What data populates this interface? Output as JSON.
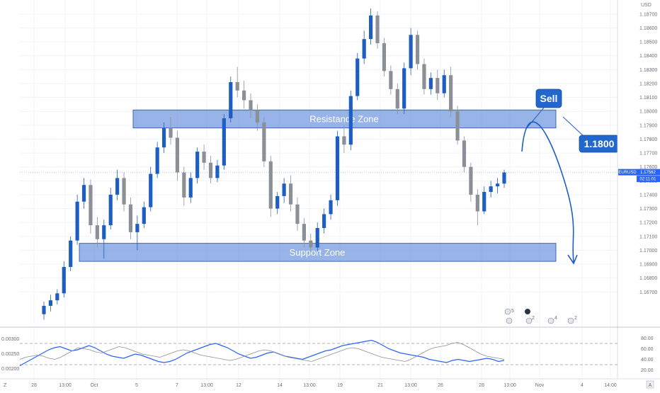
{
  "chart_data": [
    {
      "type": "candlestick",
      "title": "",
      "currency": "USD",
      "symbol_tag": "EURUSD",
      "current_price": "1.17562",
      "countdown": "02:11:01",
      "y_ticks": [
        "1.18700",
        "1.18600",
        "1.18500",
        "1.18400",
        "1.18300",
        "1.18200",
        "1.18100",
        "1.18000",
        "1.17900",
        "1.17800",
        "1.17700",
        "1.17600",
        "1.17500",
        "1.17400",
        "1.17300",
        "1.17200",
        "1.17100",
        "1.17000",
        "1.16900",
        "1.16800",
        "1.16700"
      ],
      "ylim": [
        1.1662,
        1.1874
      ],
      "x_ticks": [
        "28",
        "13:00",
        "Oct",
        "5",
        "7",
        "13:00",
        "12",
        "14",
        "13:00",
        "19",
        "21",
        "13:00",
        "26",
        "28",
        "13:00",
        "Nov",
        "4",
        "14:00"
      ],
      "resistance_zone": {
        "label": "Resistance Zone",
        "from": 1.1788,
        "to": 1.1801
      },
      "support_zone": {
        "label": "Support Zone",
        "from": 1.1692,
        "to": 1.1705
      },
      "callouts": {
        "sell": "Sell",
        "target": "1.1800"
      },
      "candles": [
        [
          1.1654,
          1.1663,
          1.165,
          1.166
        ],
        [
          1.166,
          1.1668,
          1.1656,
          1.1664
        ],
        [
          1.1664,
          1.1672,
          1.1661,
          1.1669
        ],
        [
          1.1669,
          1.1692,
          1.1666,
          1.1688
        ],
        [
          1.1688,
          1.171,
          1.1685,
          1.1707
        ],
        [
          1.1707,
          1.174,
          1.1704,
          1.1735
        ],
        [
          1.1735,
          1.1752,
          1.173,
          1.1747
        ],
        [
          1.1747,
          1.1751,
          1.1712,
          1.1718
        ],
        [
          1.1718,
          1.1724,
          1.1702,
          1.1708
        ],
        [
          1.1708,
          1.1722,
          1.1694,
          1.1718
        ],
        [
          1.1718,
          1.1745,
          1.1715,
          1.174
        ],
        [
          1.174,
          1.1758,
          1.1736,
          1.1752
        ],
        [
          1.1752,
          1.1756,
          1.1728,
          1.1733
        ],
        [
          1.1733,
          1.1738,
          1.1708,
          1.1713
        ],
        [
          1.1713,
          1.1725,
          1.17,
          1.1719
        ],
        [
          1.1719,
          1.1735,
          1.1716,
          1.1731
        ],
        [
          1.1731,
          1.176,
          1.1728,
          1.1755
        ],
        [
          1.1755,
          1.1778,
          1.1752,
          1.1774
        ],
        [
          1.1774,
          1.1792,
          1.177,
          1.1788
        ],
        [
          1.1788,
          1.1796,
          1.1776,
          1.1781
        ],
        [
          1.1781,
          1.1786,
          1.175,
          1.1756
        ],
        [
          1.1756,
          1.176,
          1.1732,
          1.1738
        ],
        [
          1.1738,
          1.1756,
          1.1734,
          1.1752
        ],
        [
          1.1752,
          1.1774,
          1.1748,
          1.1771
        ],
        [
          1.1771,
          1.1776,
          1.1758,
          1.1763
        ],
        [
          1.1763,
          1.1768,
          1.1748,
          1.1752
        ],
        [
          1.1752,
          1.1765,
          1.1749,
          1.1761
        ],
        [
          1.1761,
          1.1798,
          1.1758,
          1.1795
        ],
        [
          1.1795,
          1.1825,
          1.1792,
          1.1821
        ],
        [
          1.1821,
          1.1832,
          1.181,
          1.1815
        ],
        [
          1.1815,
          1.1822,
          1.1802,
          1.1808
        ],
        [
          1.1808,
          1.1813,
          1.1795,
          1.1801
        ],
        [
          1.1801,
          1.1805,
          1.1786,
          1.1792
        ],
        [
          1.1792,
          1.1796,
          1.176,
          1.1764
        ],
        [
          1.1764,
          1.1768,
          1.1724,
          1.173
        ],
        [
          1.173,
          1.1742,
          1.1726,
          1.1739
        ],
        [
          1.1739,
          1.1752,
          1.1734,
          1.1748
        ],
        [
          1.1748,
          1.1754,
          1.1728,
          1.1733
        ],
        [
          1.1733,
          1.1738,
          1.1714,
          1.1719
        ],
        [
          1.1719,
          1.1723,
          1.1702,
          1.1707
        ],
        [
          1.1707,
          1.1712,
          1.1698,
          1.1702
        ],
        [
          1.1702,
          1.172,
          1.1699,
          1.1716
        ],
        [
          1.1716,
          1.173,
          1.1712,
          1.1726
        ],
        [
          1.1726,
          1.174,
          1.1722,
          1.1736
        ],
        [
          1.1736,
          1.1786,
          1.1732,
          1.1782
        ],
        [
          1.1782,
          1.179,
          1.177,
          1.1776
        ],
        [
          1.1776,
          1.1815,
          1.1772,
          1.1811
        ],
        [
          1.1811,
          1.1842,
          1.1808,
          1.1838
        ],
        [
          1.1838,
          1.1858,
          1.1834,
          1.1852
        ],
        [
          1.1852,
          1.1874,
          1.1848,
          1.1869
        ],
        [
          1.1869,
          1.1872,
          1.1845,
          1.1849
        ],
        [
          1.1849,
          1.1853,
          1.1825,
          1.1829
        ],
        [
          1.1829,
          1.1833,
          1.1812,
          1.1816
        ],
        [
          1.1816,
          1.182,
          1.1798,
          1.1802
        ],
        [
          1.1802,
          1.1835,
          1.1798,
          1.1831
        ],
        [
          1.1831,
          1.186,
          1.1826,
          1.1855
        ],
        [
          1.1855,
          1.1858,
          1.183,
          1.1834
        ],
        [
          1.1834,
          1.1838,
          1.1812,
          1.1816
        ],
        [
          1.1816,
          1.1828,
          1.1812,
          1.1824
        ],
        [
          1.1824,
          1.183,
          1.1808,
          1.1813
        ],
        [
          1.1813,
          1.183,
          1.181,
          1.1826
        ],
        [
          1.1826,
          1.1832,
          1.1796,
          1.18
        ],
        [
          1.18,
          1.1804,
          1.1776,
          1.1779
        ],
        [
          1.1779,
          1.1782,
          1.1756,
          1.176
        ],
        [
          1.176,
          1.1763,
          1.1735,
          1.174
        ],
        [
          1.174,
          1.1744,
          1.1718,
          1.1728
        ],
        [
          1.1728,
          1.1746,
          1.1726,
          1.1742
        ],
        [
          1.1742,
          1.175,
          1.1738,
          1.1746
        ],
        [
          1.1746,
          1.1752,
          1.1741,
          1.1748
        ],
        [
          1.1748,
          1.1758,
          1.1745,
          1.1756
        ]
      ],
      "up_color": "#1e5ec2",
      "down_color": "#8c8f96"
    },
    {
      "type": "line",
      "subtype": "oscillator",
      "y_ticks_left": [
        "0.00300",
        "0.00250",
        "0.00200"
      ],
      "y_ticks_right": [
        "80.00",
        "60.00",
        "40.00",
        "20.00"
      ],
      "ylim": [
        10,
        90
      ],
      "levels": [
        70,
        30
      ],
      "series": [
        {
          "color": "#2962ff",
          "values": [
            28,
            34,
            40,
            46,
            52,
            58,
            62,
            64,
            60,
            56,
            58,
            62,
            66,
            62,
            56,
            50,
            46,
            44,
            42,
            46,
            50,
            48,
            44,
            40,
            36,
            34,
            36,
            40,
            46,
            52,
            56,
            60,
            64,
            68,
            70,
            66,
            62,
            56,
            50,
            46,
            42,
            44,
            48,
            52,
            54,
            50,
            46,
            44,
            42,
            40,
            44,
            48,
            52,
            56,
            58,
            62,
            66,
            68,
            70,
            72,
            74,
            76,
            72,
            66,
            60,
            56,
            52,
            50,
            48,
            46,
            44,
            40,
            38,
            36,
            34,
            38,
            40,
            38,
            36,
            38,
            40,
            42,
            40,
            36,
            38
          ]
        },
        {
          "color": "#8c8f96",
          "values": [
            40,
            44,
            46,
            48,
            46,
            42,
            40,
            44,
            50,
            56,
            62,
            60,
            58,
            54,
            52,
            56,
            60,
            64,
            62,
            58,
            54,
            50,
            48,
            46,
            44,
            48,
            52,
            56,
            58,
            56,
            52,
            48,
            46,
            44,
            42,
            40,
            38,
            40,
            44,
            48,
            52,
            56,
            58,
            56,
            52,
            48,
            44,
            42,
            40,
            38,
            36,
            40,
            44,
            48,
            52,
            56,
            60,
            62,
            60,
            56,
            52,
            48,
            44,
            42,
            40,
            38,
            36,
            40,
            46,
            52,
            58,
            62,
            64,
            66,
            70,
            72,
            68,
            62,
            56,
            50,
            46,
            44,
            42,
            40
          ]
        }
      ]
    }
  ],
  "footer": {
    "timezone_button": "Z"
  },
  "event_markers": [
    {
      "icon": "earnings-icon",
      "count": "5"
    },
    {
      "icon": "earnings-icon",
      "count": "2"
    },
    {
      "icon": "flag-icon",
      "count": "4"
    },
    {
      "icon": "flag-icon",
      "count": "2"
    }
  ]
}
